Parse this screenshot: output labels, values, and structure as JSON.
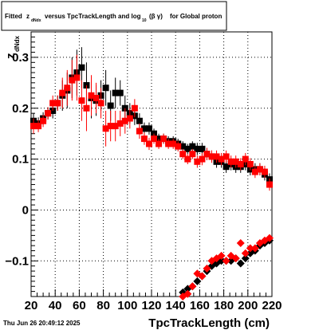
{
  "header": {
    "title_word_fitted": "Fitted",
    "title_z": "z",
    "title_z_sub": "dNdx",
    "title_versus": "versus TpcTrackLength and log",
    "title_log_sub": "10",
    "title_beta_gamma": "(β  γ)",
    "title_end": "for Global proton"
  },
  "footer": {
    "timestamp": "Thu Jun 26 20:49:12 2025"
  },
  "chart_data": {
    "type": "scatter",
    "xlabel": "TpcTrackLength (cm)",
    "ylabel_main": "z",
    "ylabel_sub": "dNdx",
    "xlim": [
      20,
      220
    ],
    "ylim": [
      -0.17,
      0.35
    ],
    "grid": true,
    "x_ticks": [
      20,
      40,
      60,
      80,
      100,
      120,
      140,
      160,
      180,
      200,
      220
    ],
    "x_tick_labels": [
      "20",
      "40",
      "60",
      "80",
      "100",
      "120",
      "140",
      "160",
      "180",
      "200",
      "220"
    ],
    "y_ticks": [
      -0.1,
      0,
      0.1,
      0.2,
      0.3
    ],
    "y_tick_labels": [
      "−0.1",
      "0",
      "0.1",
      "0.2",
      "0.3"
    ],
    "series": [
      {
        "color": "#000000",
        "marker": "square",
        "points": [
          {
            "x": 22,
            "y": 0.175,
            "e": 0.015
          },
          {
            "x": 26,
            "y": 0.17,
            "e": 0.012
          },
          {
            "x": 30,
            "y": 0.18,
            "e": 0.012
          },
          {
            "x": 34,
            "y": 0.19,
            "e": 0.012
          },
          {
            "x": 38,
            "y": 0.195,
            "e": 0.015
          },
          {
            "x": 42,
            "y": 0.21,
            "e": 0.015
          },
          {
            "x": 46,
            "y": 0.225,
            "e": 0.03
          },
          {
            "x": 50,
            "y": 0.235,
            "e": 0.035
          },
          {
            "x": 54,
            "y": 0.26,
            "e": 0.04
          },
          {
            "x": 58,
            "y": 0.27,
            "e": 0.045
          },
          {
            "x": 62,
            "y": 0.28,
            "e": 0.04
          },
          {
            "x": 66,
            "y": 0.245,
            "e": 0.045
          },
          {
            "x": 70,
            "y": 0.22,
            "e": 0.04
          },
          {
            "x": 74,
            "y": 0.215,
            "e": 0.03
          },
          {
            "x": 78,
            "y": 0.225,
            "e": 0.03
          },
          {
            "x": 82,
            "y": 0.24,
            "e": 0.035
          },
          {
            "x": 86,
            "y": 0.205,
            "e": 0.03
          },
          {
            "x": 90,
            "y": 0.23,
            "e": 0.03
          },
          {
            "x": 94,
            "y": 0.23,
            "e": 0.025
          },
          {
            "x": 98,
            "y": 0.2,
            "e": 0.025
          },
          {
            "x": 102,
            "y": 0.19,
            "e": 0.02
          },
          {
            "x": 106,
            "y": 0.185,
            "e": 0.018
          },
          {
            "x": 110,
            "y": 0.175,
            "e": 0.015
          },
          {
            "x": 114,
            "y": 0.16,
            "e": 0.012
          },
          {
            "x": 118,
            "y": 0.16,
            "e": 0.012
          },
          {
            "x": 122,
            "y": 0.15,
            "e": 0.01
          },
          {
            "x": 126,
            "y": 0.14,
            "e": 0.01
          },
          {
            "x": 130,
            "y": 0.14,
            "e": 0.01
          },
          {
            "x": 134,
            "y": 0.135,
            "e": 0.01
          },
          {
            "x": 138,
            "y": 0.135,
            "e": 0.01
          },
          {
            "x": 142,
            "y": 0.13,
            "e": 0.01
          },
          {
            "x": 146,
            "y": 0.125,
            "e": 0.01
          },
          {
            "x": 150,
            "y": 0.12,
            "e": 0.01
          },
          {
            "x": 154,
            "y": 0.125,
            "e": 0.01
          },
          {
            "x": 158,
            "y": 0.12,
            "e": 0.012
          },
          {
            "x": 162,
            "y": 0.12,
            "e": 0.012
          },
          {
            "x": 166,
            "y": 0.11,
            "e": 0.012
          },
          {
            "x": 170,
            "y": 0.105,
            "e": 0.012
          },
          {
            "x": 174,
            "y": 0.095,
            "e": 0.012
          },
          {
            "x": 178,
            "y": 0.095,
            "e": 0.012
          },
          {
            "x": 182,
            "y": 0.085,
            "e": 0.012
          },
          {
            "x": 186,
            "y": 0.09,
            "e": 0.012
          },
          {
            "x": 190,
            "y": 0.085,
            "e": 0.012
          },
          {
            "x": 194,
            "y": 0.085,
            "e": 0.012
          },
          {
            "x": 198,
            "y": 0.09,
            "e": 0.012
          },
          {
            "x": 202,
            "y": 0.08,
            "e": 0.012
          },
          {
            "x": 206,
            "y": 0.08,
            "e": 0.012
          },
          {
            "x": 210,
            "y": 0.08,
            "e": 0.012
          },
          {
            "x": 214,
            "y": 0.07,
            "e": 0.012
          },
          {
            "x": 218,
            "y": 0.06,
            "e": 0.012
          }
        ]
      },
      {
        "color": "#ff0000",
        "marker": "square",
        "points": [
          {
            "x": 22,
            "y": 0.165,
            "e": 0.015
          },
          {
            "x": 26,
            "y": 0.165,
            "e": 0.012
          },
          {
            "x": 30,
            "y": 0.175,
            "e": 0.012
          },
          {
            "x": 34,
            "y": 0.19,
            "e": 0.012
          },
          {
            "x": 38,
            "y": 0.21,
            "e": 0.015
          },
          {
            "x": 42,
            "y": 0.21,
            "e": 0.015
          },
          {
            "x": 46,
            "y": 0.23,
            "e": 0.03
          },
          {
            "x": 50,
            "y": 0.24,
            "e": 0.035
          },
          {
            "x": 54,
            "y": 0.255,
            "e": 0.04
          },
          {
            "x": 58,
            "y": 0.26,
            "e": 0.045
          },
          {
            "x": 62,
            "y": 0.215,
            "e": 0.04
          },
          {
            "x": 66,
            "y": 0.2,
            "e": 0.045
          },
          {
            "x": 70,
            "y": 0.225,
            "e": 0.04
          },
          {
            "x": 74,
            "y": 0.22,
            "e": 0.03
          },
          {
            "x": 78,
            "y": 0.21,
            "e": 0.03
          },
          {
            "x": 82,
            "y": 0.16,
            "e": 0.035
          },
          {
            "x": 86,
            "y": 0.165,
            "e": 0.03
          },
          {
            "x": 90,
            "y": 0.165,
            "e": 0.03
          },
          {
            "x": 94,
            "y": 0.17,
            "e": 0.025
          },
          {
            "x": 98,
            "y": 0.175,
            "e": 0.025
          },
          {
            "x": 102,
            "y": 0.18,
            "e": 0.02
          },
          {
            "x": 106,
            "y": 0.2,
            "e": 0.018
          },
          {
            "x": 110,
            "y": 0.155,
            "e": 0.015
          },
          {
            "x": 114,
            "y": 0.14,
            "e": 0.012
          },
          {
            "x": 118,
            "y": 0.13,
            "e": 0.012
          },
          {
            "x": 122,
            "y": 0.14,
            "e": 0.01
          },
          {
            "x": 126,
            "y": 0.13,
            "e": 0.01
          },
          {
            "x": 130,
            "y": 0.14,
            "e": 0.01
          },
          {
            "x": 134,
            "y": 0.13,
            "e": 0.01
          },
          {
            "x": 138,
            "y": 0.13,
            "e": 0.01
          },
          {
            "x": 142,
            "y": 0.125,
            "e": 0.01
          },
          {
            "x": 146,
            "y": 0.11,
            "e": 0.01
          },
          {
            "x": 150,
            "y": 0.1,
            "e": 0.01
          },
          {
            "x": 154,
            "y": 0.11,
            "e": 0.01
          },
          {
            "x": 158,
            "y": 0.095,
            "e": 0.012
          },
          {
            "x": 162,
            "y": 0.1,
            "e": 0.012
          },
          {
            "x": 166,
            "y": 0.11,
            "e": 0.012
          },
          {
            "x": 170,
            "y": 0.105,
            "e": 0.012
          },
          {
            "x": 174,
            "y": 0.105,
            "e": 0.012
          },
          {
            "x": 178,
            "y": 0.1,
            "e": 0.012
          },
          {
            "x": 182,
            "y": 0.105,
            "e": 0.012
          },
          {
            "x": 186,
            "y": 0.095,
            "e": 0.012
          },
          {
            "x": 190,
            "y": 0.095,
            "e": 0.012
          },
          {
            "x": 194,
            "y": 0.09,
            "e": 0.012
          },
          {
            "x": 198,
            "y": 0.1,
            "e": 0.012
          },
          {
            "x": 202,
            "y": 0.09,
            "e": 0.012
          },
          {
            "x": 206,
            "y": 0.075,
            "e": 0.012
          },
          {
            "x": 210,
            "y": 0.08,
            "e": 0.012
          },
          {
            "x": 214,
            "y": 0.075,
            "e": 0.012
          },
          {
            "x": 218,
            "y": 0.05,
            "e": 0.012
          }
        ]
      },
      {
        "color": "#000000",
        "marker": "diamond",
        "points": [
          {
            "x": 146,
            "y": -0.162
          },
          {
            "x": 150,
            "y": -0.155
          },
          {
            "x": 154,
            "y": -0.15
          },
          {
            "x": 158,
            "y": -0.14
          },
          {
            "x": 162,
            "y": -0.13
          },
          {
            "x": 166,
            "y": -0.12
          },
          {
            "x": 170,
            "y": -0.11
          },
          {
            "x": 174,
            "y": -0.105
          },
          {
            "x": 178,
            "y": -0.1
          },
          {
            "x": 182,
            "y": -0.1
          },
          {
            "x": 186,
            "y": -0.1
          },
          {
            "x": 190,
            "y": -0.095
          },
          {
            "x": 194,
            "y": -0.105
          },
          {
            "x": 198,
            "y": -0.095
          },
          {
            "x": 202,
            "y": -0.085
          },
          {
            "x": 206,
            "y": -0.08
          },
          {
            "x": 210,
            "y": -0.07
          },
          {
            "x": 214,
            "y": -0.065
          },
          {
            "x": 218,
            "y": -0.06
          }
        ]
      },
      {
        "color": "#ff0000",
        "marker": "diamond",
        "points": [
          {
            "x": 146,
            "y": -0.17
          },
          {
            "x": 150,
            "y": -0.165
          },
          {
            "x": 154,
            "y": -0.15
          },
          {
            "x": 158,
            "y": -0.125
          },
          {
            "x": 162,
            "y": -0.13
          },
          {
            "x": 166,
            "y": -0.115
          },
          {
            "x": 170,
            "y": -0.1
          },
          {
            "x": 174,
            "y": -0.095
          },
          {
            "x": 178,
            "y": -0.09
          },
          {
            "x": 182,
            "y": -0.1
          },
          {
            "x": 186,
            "y": -0.09
          },
          {
            "x": 190,
            "y": -0.095
          },
          {
            "x": 194,
            "y": -0.065
          },
          {
            "x": 198,
            "y": -0.085
          },
          {
            "x": 202,
            "y": -0.075
          },
          {
            "x": 206,
            "y": -0.075
          },
          {
            "x": 210,
            "y": -0.065
          },
          {
            "x": 214,
            "y": -0.06
          },
          {
            "x": 218,
            "y": -0.055
          }
        ]
      }
    ]
  }
}
